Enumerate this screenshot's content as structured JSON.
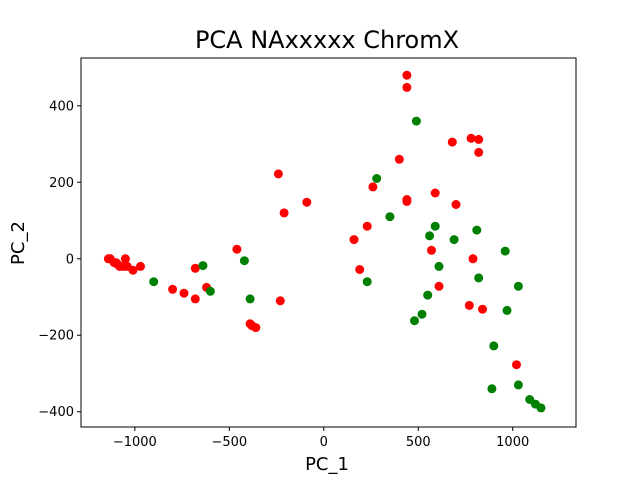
{
  "chart_data": {
    "type": "scatter",
    "title": "PCA NAxxxxx ChromX",
    "xlabel": "PC_1",
    "ylabel": "PC_2",
    "xlim": [
      -1285,
      1335
    ],
    "ylim": [
      -440,
      525
    ],
    "xticks": [
      -1000,
      -500,
      0,
      500,
      1000
    ],
    "yticks": [
      -400,
      -200,
      0,
      200,
      400
    ],
    "xtick_labels": [
      "−1000",
      "−500",
      "0",
      "500",
      "1000"
    ],
    "ytick_labels": [
      "−400",
      "−200",
      "0",
      "200",
      "400"
    ],
    "grid": false,
    "series": [
      {
        "color": "#ff0000",
        "points": [
          [
            -1140,
            0
          ],
          [
            -1130,
            0
          ],
          [
            -1110,
            -10
          ],
          [
            -1100,
            -10
          ],
          [
            -1090,
            -15
          ],
          [
            -1080,
            -20
          ],
          [
            -1060,
            -20
          ],
          [
            -1050,
            0
          ],
          [
            -1040,
            -20
          ],
          [
            -1010,
            -30
          ],
          [
            -970,
            -20
          ],
          [
            -800,
            -80
          ],
          [
            -740,
            -90
          ],
          [
            -680,
            -105
          ],
          [
            -680,
            -25
          ],
          [
            -620,
            -75
          ],
          [
            -460,
            25
          ],
          [
            -390,
            -170
          ],
          [
            -380,
            -175
          ],
          [
            -360,
            -180
          ],
          [
            -240,
            222
          ],
          [
            -230,
            -110
          ],
          [
            -210,
            120
          ],
          [
            -90,
            148
          ],
          [
            160,
            50
          ],
          [
            190,
            -28
          ],
          [
            230,
            85
          ],
          [
            260,
            188
          ],
          [
            400,
            260
          ],
          [
            440,
            150
          ],
          [
            440,
            155
          ],
          [
            440,
            448
          ],
          [
            440,
            480
          ],
          [
            570,
            22
          ],
          [
            590,
            172
          ],
          [
            610,
            -72
          ],
          [
            680,
            305
          ],
          [
            700,
            142
          ],
          [
            770,
            -122
          ],
          [
            780,
            315
          ],
          [
            790,
            0
          ],
          [
            820,
            312
          ],
          [
            820,
            278
          ],
          [
            840,
            -132
          ],
          [
            1020,
            -277
          ]
        ]
      },
      {
        "color": "#008000",
        "points": [
          [
            -900,
            -60
          ],
          [
            -640,
            -18
          ],
          [
            -600,
            -85
          ],
          [
            -420,
            -5
          ],
          [
            -390,
            -105
          ],
          [
            230,
            -60
          ],
          [
            280,
            210
          ],
          [
            350,
            110
          ],
          [
            480,
            -162
          ],
          [
            490,
            360
          ],
          [
            520,
            -145
          ],
          [
            550,
            -95
          ],
          [
            560,
            60
          ],
          [
            590,
            85
          ],
          [
            610,
            -20
          ],
          [
            690,
            50
          ],
          [
            810,
            75
          ],
          [
            820,
            -50
          ],
          [
            890,
            -340
          ],
          [
            900,
            -228
          ],
          [
            960,
            20
          ],
          [
            970,
            -135
          ],
          [
            1030,
            -72
          ],
          [
            1030,
            -330
          ],
          [
            1090,
            -368
          ],
          [
            1120,
            -380
          ],
          [
            1150,
            -390
          ]
        ]
      }
    ]
  }
}
